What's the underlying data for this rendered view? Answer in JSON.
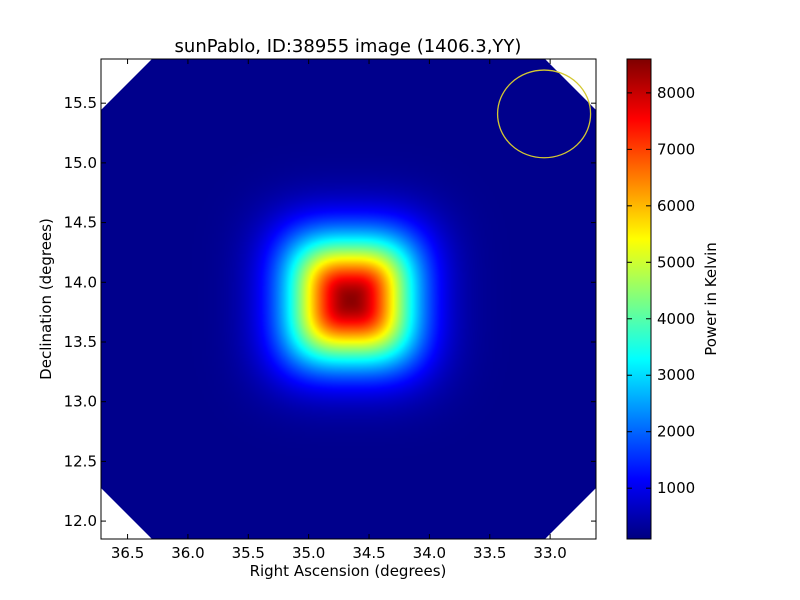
{
  "chart_data": {
    "type": "heatmap",
    "title": "sunPablo, ID:38955 image (1406.3,YY)",
    "xlabel": "Right Ascension (degrees)",
    "ylabel": "Declination (degrees)",
    "xlim": [
      36.72,
      32.62
    ],
    "ylim": [
      11.85,
      15.87
    ],
    "xticks": [
      36.5,
      36.0,
      35.5,
      35.0,
      34.5,
      34.0,
      33.5,
      33.0
    ],
    "xtick_labels": [
      "36.5",
      "36.0",
      "35.5",
      "35.0",
      "34.5",
      "34.0",
      "33.5",
      "33.0"
    ],
    "yticks": [
      12.0,
      12.5,
      13.0,
      13.5,
      14.0,
      14.5,
      15.0,
      15.5
    ],
    "ytick_labels": [
      "12.0",
      "12.5",
      "13.0",
      "13.5",
      "14.0",
      "14.5",
      "15.0",
      "15.5"
    ],
    "colormap": "jet",
    "colorbar": {
      "label": "Power in Kelvin",
      "range": [
        100,
        8600
      ],
      "ticks": [
        1000,
        2000,
        3000,
        4000,
        5000,
        6000,
        7000,
        8000
      ],
      "tick_labels": [
        "1000",
        "2000",
        "3000",
        "4000",
        "5000",
        "6000",
        "7000",
        "8000"
      ]
    },
    "source": {
      "center_ra": 34.65,
      "center_dec": 13.85,
      "peak_kelvin": 8500,
      "background_kelvin": 200
    },
    "beam_circle": {
      "center_ra": 33.05,
      "center_dec": 15.41,
      "radius_deg": 0.36,
      "color": "#d4c832"
    },
    "masked_corners": true
  }
}
